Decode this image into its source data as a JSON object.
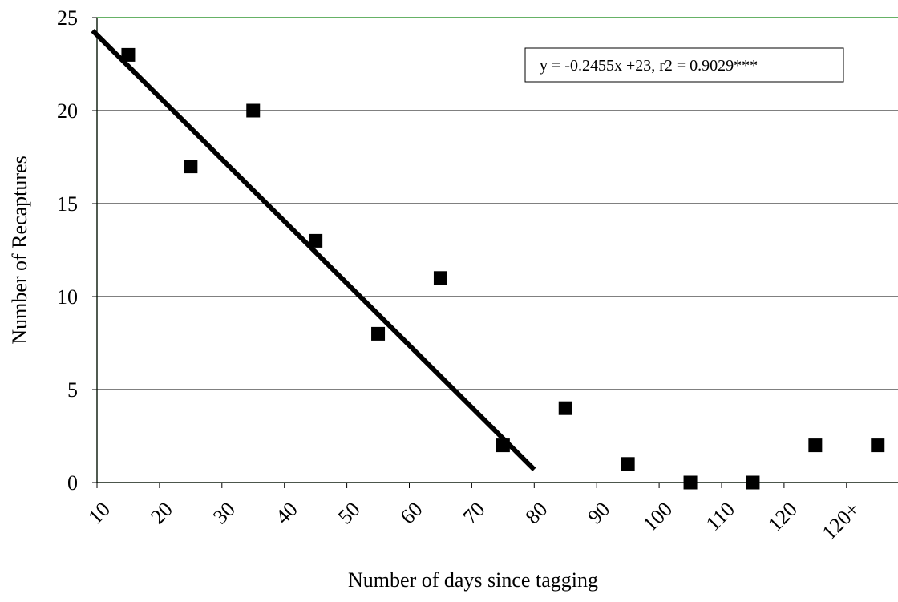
{
  "chart_data": {
    "type": "scatter",
    "xlabel": "Number of days since tagging",
    "ylabel": "Number of Recaptures",
    "categories": [
      "10",
      "20",
      "30",
      "40",
      "50",
      "60",
      "70",
      "80",
      "90",
      "100",
      "110",
      "120",
      "120+"
    ],
    "ylim": [
      0,
      25
    ],
    "yticks": [
      "0",
      "5",
      "10",
      "15",
      "20",
      "25"
    ],
    "grid": "horizontal",
    "series": [
      {
        "values": [
          23,
          17,
          20,
          13,
          8,
          11,
          2,
          4,
          1,
          0,
          0,
          2,
          2
        ],
        "marker": "square",
        "color": "#000000"
      }
    ],
    "trendline": {
      "label": "y = -0.2455x +23, r2 = 0.9029***",
      "x_start": 9.3,
      "y_start": 24.3,
      "x_end": 80,
      "y_end": 0.7,
      "color": "#000000"
    },
    "colors": {
      "plot_border": "#008000",
      "gridline": "#000000",
      "axis": "#000000"
    }
  }
}
